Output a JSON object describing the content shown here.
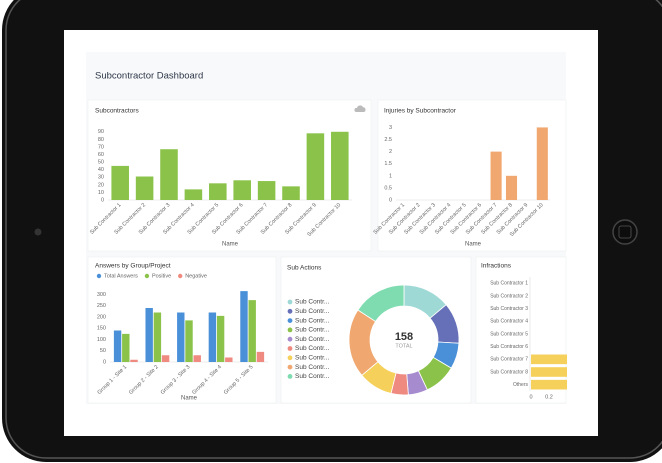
{
  "title": "Subcontractor Dashboard",
  "chart_data": [
    {
      "type": "bar",
      "title": "Subcontractors",
      "x_label": "Name",
      "categories": [
        "Sub Contractor 1",
        "Sub Contractor 2",
        "Sub Contractor 3",
        "Sub Contractor 4",
        "Sub Contractor 5",
        "Sub Contractor 6",
        "Sub Contractor 7",
        "Sub Contractor 8",
        "Sub Contractor 9",
        "Sub Contractor 10"
      ],
      "values": [
        45,
        31,
        67,
        14,
        22,
        26,
        25,
        18,
        88,
        90
      ],
      "color": "#8bc34a",
      "ylim": [
        0,
        95
      ],
      "yticks": [
        0,
        10,
        20,
        30,
        40,
        50,
        60,
        70,
        80,
        90
      ],
      "grid": false
    },
    {
      "type": "bar",
      "title": "Injuries by Subcontractor",
      "x_label": "Name",
      "categories": [
        "Sub Contractor 1",
        "Sub Contractor 2",
        "Sub Contractor 3",
        "Sub Contractor 4",
        "Sub Contractor 5",
        "Sub Contractor 6",
        "Sub Contractor 7",
        "Sub Contractor 8",
        "Sub Contractor 9",
        "Sub Contractor 10"
      ],
      "values": [
        0,
        0,
        0,
        0,
        0,
        0,
        2,
        1,
        0,
        3
      ],
      "color": "#f0a870",
      "ylim": [
        0,
        3.1
      ],
      "yticks": [
        0,
        0.5,
        1,
        1.5,
        2,
        2.5,
        3
      ],
      "grid": false
    },
    {
      "type": "bar",
      "title": "Answers by Group/Project",
      "x_label": "Name",
      "categories": [
        "Group 1 - Site 1",
        "Group 2 - Site 2",
        "Group 3 - Site 3",
        "Group 4 - Site 4",
        "Group 5 - Site 5"
      ],
      "series": [
        {
          "name": "Total Answers",
          "color": "#4a90d9",
          "values": [
            140,
            240,
            220,
            220,
            315
          ]
        },
        {
          "name": "Positive",
          "color": "#8bc34a",
          "values": [
            125,
            220,
            185,
            205,
            275
          ]
        },
        {
          "name": "Negative",
          "color": "#ef8a80",
          "values": [
            10,
            30,
            30,
            20,
            45
          ]
        }
      ],
      "ylim": [
        0,
        320
      ],
      "yticks": [
        0,
        50,
        100,
        150,
        200,
        250,
        300
      ],
      "grid": false
    },
    {
      "type": "pie",
      "title": "Sub Actions",
      "center_value": 158,
      "center_label": "TOTAL",
      "categories": [
        "Sub Contr...",
        "Sub Contr...",
        "Sub Contr...",
        "Sub Contr...",
        "Sub Contr...",
        "Sub Contr...",
        "Sub Contr...",
        "Sub Contr...",
        "Sub Contr..."
      ],
      "values": [
        22,
        19,
        12,
        15,
        9,
        8,
        16,
        32,
        25
      ],
      "colors": [
        "#9fd9d6",
        "#6670b8",
        "#4a90d9",
        "#8bc34a",
        "#a78bcf",
        "#ef8a80",
        "#f5d15b",
        "#f0a870",
        "#7edcb0"
      ]
    },
    {
      "type": "barh",
      "title": "Infractions",
      "categories": [
        "Sub Contractor 1",
        "Sub Contractor 2",
        "Sub Contractor 3",
        "Sub Contractor 4",
        "Sub Contractor 5",
        "Sub Contractor 6",
        "Sub Contractor 7",
        "Sub Contractor 8",
        "Others"
      ],
      "values": [
        0,
        0,
        0,
        0,
        0,
        0,
        0.4,
        0.4,
        0.4
      ],
      "color": "#f5d15b",
      "xlim": [
        0,
        0.4
      ],
      "xticks": [
        0,
        0.2
      ],
      "grid": false
    }
  ]
}
